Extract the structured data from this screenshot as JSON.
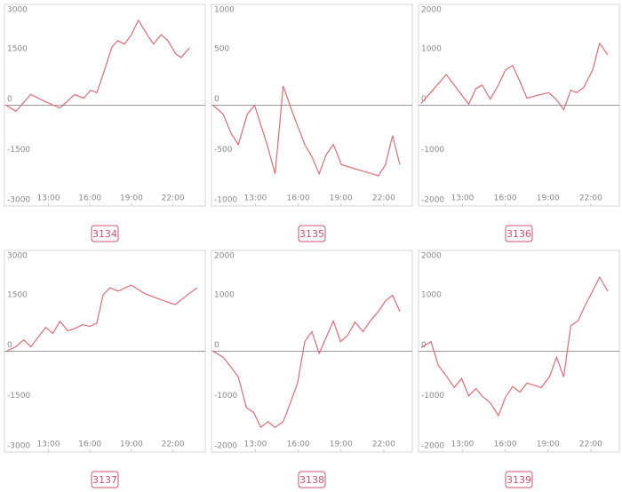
{
  "chart_data": [
    {
      "type": "line",
      "title": "3134",
      "color": "#e06c75",
      "x": [
        9.94,
        10.64,
        11.73,
        12.8,
        13.83,
        14.9,
        15.55,
        16.06,
        16.5,
        16.95,
        17.6,
        18.0,
        18.5,
        19.0,
        19.5,
        20.1,
        20.6,
        21.15,
        21.65,
        22.2,
        22.6,
        23.2
      ],
      "values": [
        0,
        -180,
        320,
        100,
        -80,
        320,
        210,
        450,
        370,
        920,
        1740,
        1920,
        1820,
        2100,
        2530,
        2130,
        1820,
        2100,
        1920,
        1530,
        1420,
        1710
      ],
      "xlim": [
        9.82,
        24.34
      ],
      "xticks": [
        {
          "value": 13,
          "label": "13:00"
        },
        {
          "value": 16,
          "label": "16:00"
        },
        {
          "value": 19,
          "label": "19:00"
        },
        {
          "value": 22,
          "label": "22:00"
        }
      ],
      "ylim": [
        -3000,
        3000
      ],
      "yticks": [
        3000,
        1500,
        0,
        -1500,
        -3000
      ]
    },
    {
      "type": "line",
      "title": "3135",
      "color": "#e06c75",
      "x": [
        10.04,
        10.74,
        11.3,
        11.8,
        12.43,
        12.94,
        13.82,
        14.38,
        14.95,
        15.7,
        16.46,
        16.96,
        17.47,
        17.97,
        18.47,
        19.04,
        21.62,
        22.12,
        22.62,
        23.13
      ],
      "values": [
        0,
        -90,
        -280,
        -390,
        -90,
        0,
        -390,
        -680,
        190,
        -110,
        -390,
        -510,
        -680,
        -490,
        -390,
        -590,
        -700,
        -590,
        -300,
        -590
      ],
      "xlim": [
        9.92,
        24.0
      ],
      "xticks": [
        {
          "value": 13,
          "label": "13:00"
        },
        {
          "value": 16,
          "label": "16:00"
        },
        {
          "value": 19,
          "label": "19:00"
        },
        {
          "value": 22,
          "label": "22:00"
        }
      ],
      "ylim": [
        -1000,
        1000
      ],
      "yticks": [
        1000,
        500,
        0,
        -500,
        -1000
      ]
    },
    {
      "type": "line",
      "title": "3136",
      "color": "#e06c75",
      "x": [
        10.1,
        10.8,
        11.87,
        12.69,
        13.44,
        13.94,
        14.38,
        14.95,
        15.5,
        16.02,
        16.52,
        17.03,
        17.53,
        18.03,
        19.04,
        19.6,
        20.1,
        20.6,
        20.99,
        21.5,
        22.13,
        22.62,
        23.19
      ],
      "values": [
        35,
        260,
        610,
        300,
        20,
        330,
        400,
        120,
        390,
        700,
        790,
        470,
        140,
        180,
        250,
        110,
        -90,
        300,
        250,
        350,
        700,
        1230,
        1000
      ],
      "xlim": [
        9.92,
        24.0
      ],
      "xticks": [
        {
          "value": 13,
          "label": "13:00"
        },
        {
          "value": 16,
          "label": "16:00"
        },
        {
          "value": 19,
          "label": "19:00"
        },
        {
          "value": 22,
          "label": "22:00"
        }
      ],
      "ylim": [
        -2000,
        2000
      ],
      "yticks": [
        2000,
        1000,
        0,
        -1000,
        -2000
      ]
    },
    {
      "type": "line",
      "title": "3137",
      "color": "#e06c75",
      "x": [
        9.94,
        10.64,
        11.22,
        11.73,
        12.8,
        13.32,
        13.83,
        14.4,
        14.91,
        15.48,
        15.99,
        16.5,
        16.95,
        17.46,
        18.03,
        18.99,
        20.0,
        21.15,
        22.17,
        23.25,
        23.76
      ],
      "values": [
        0,
        130,
        340,
        130,
        710,
        530,
        890,
        610,
        680,
        790,
        740,
        840,
        1680,
        1890,
        1790,
        1970,
        1710,
        1530,
        1390,
        1740,
        1890
      ],
      "xlim": [
        9.82,
        24.34
      ],
      "xticks": [
        {
          "value": 13,
          "label": "13:00"
        },
        {
          "value": 16,
          "label": "16:00"
        },
        {
          "value": 19,
          "label": "19:00"
        },
        {
          "value": 22,
          "label": "22:00"
        }
      ],
      "ylim": [
        -3000,
        3000
      ],
      "yticks": [
        3000,
        1500,
        0,
        -1500,
        -3000
      ]
    },
    {
      "type": "line",
      "title": "3138",
      "color": "#e06c75",
      "x": [
        10.04,
        10.74,
        11.3,
        11.8,
        12.37,
        12.87,
        13.38,
        13.88,
        14.38,
        14.95,
        15.45,
        15.96,
        16.46,
        16.96,
        17.47,
        17.97,
        18.47,
        18.97,
        19.48,
        19.98,
        20.55,
        21.05,
        21.62,
        22.12,
        22.62,
        23.13
      ],
      "values": [
        0,
        -120,
        -320,
        -510,
        -1120,
        -1210,
        -1510,
        -1400,
        -1510,
        -1400,
        -1020,
        -630,
        190,
        390,
        -40,
        280,
        600,
        190,
        320,
        580,
        390,
        600,
        790,
        1000,
        1110,
        790
      ],
      "xlim": [
        9.92,
        24.0
      ],
      "xticks": [
        {
          "value": 13,
          "label": "13:00"
        },
        {
          "value": 16,
          "label": "16:00"
        },
        {
          "value": 19,
          "label": "19:00"
        },
        {
          "value": 22,
          "label": "22:00"
        }
      ],
      "ylim": [
        -2000,
        2000
      ],
      "yticks": [
        2000,
        1000,
        0,
        -1000,
        -2000
      ]
    },
    {
      "type": "line",
      "title": "3139",
      "color": "#e06c75",
      "x": [
        10.1,
        10.8,
        11.3,
        11.87,
        12.43,
        12.94,
        13.44,
        13.94,
        14.45,
        14.95,
        15.52,
        16.02,
        16.52,
        17.03,
        17.53,
        18.53,
        19.1,
        19.6,
        20.1,
        20.6,
        21.11,
        21.6,
        22.12,
        22.62,
        23.19
      ],
      "values": [
        70,
        190,
        -280,
        -490,
        -720,
        -540,
        -890,
        -740,
        -910,
        -1020,
        -1280,
        -910,
        -700,
        -810,
        -630,
        -720,
        -510,
        -120,
        -510,
        510,
        600,
        910,
        1190,
        1470,
        1190
      ],
      "xlim": [
        9.92,
        24.0
      ],
      "xticks": [
        {
          "value": 13,
          "label": "13:00"
        },
        {
          "value": 16,
          "label": "16:00"
        },
        {
          "value": 19,
          "label": "19:00"
        },
        {
          "value": 22,
          "label": "22:00"
        }
      ],
      "ylim": [
        -2000,
        2000
      ],
      "yticks": [
        2000,
        1000,
        0,
        -1000,
        -2000
      ]
    }
  ]
}
